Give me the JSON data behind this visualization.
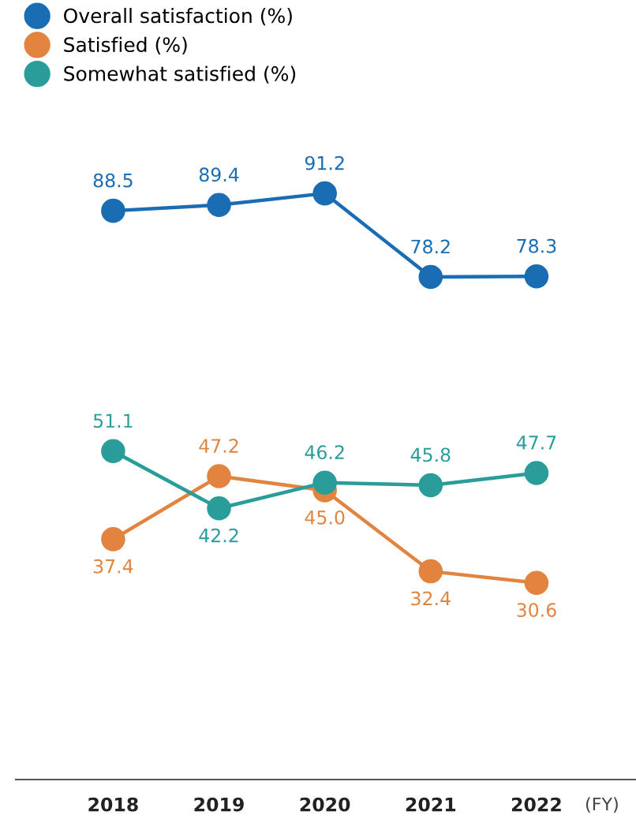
{
  "chart_data": {
    "type": "line",
    "categories": [
      "2018",
      "2019",
      "2020",
      "2021",
      "2022"
    ],
    "xlabel": "(FY)",
    "series": [
      {
        "name": "Overall satisfaction (%)",
        "color": "#1a6db3",
        "values": [
          88.5,
          89.4,
          91.2,
          78.2,
          78.3
        ],
        "value_labels": [
          "88.5",
          "89.4",
          "91.2",
          "78.2",
          "78.3"
        ]
      },
      {
        "name": "Satisfied (%)",
        "color": "#e2843f",
        "values": [
          37.4,
          47.2,
          45.0,
          32.4,
          30.6
        ],
        "value_labels": [
          "37.4",
          "47.2",
          "45.0",
          "32.4",
          "30.6"
        ]
      },
      {
        "name": "Somewhat satisfied (%)",
        "color": "#2a9d9b",
        "values": [
          51.1,
          42.2,
          46.2,
          45.8,
          47.7
        ],
        "value_labels": [
          "51.1",
          "42.2",
          "46.2",
          "45.8",
          "47.7"
        ]
      }
    ],
    "marker": "circle",
    "line_style": "solid",
    "legend": "top left",
    "grid": false
  }
}
